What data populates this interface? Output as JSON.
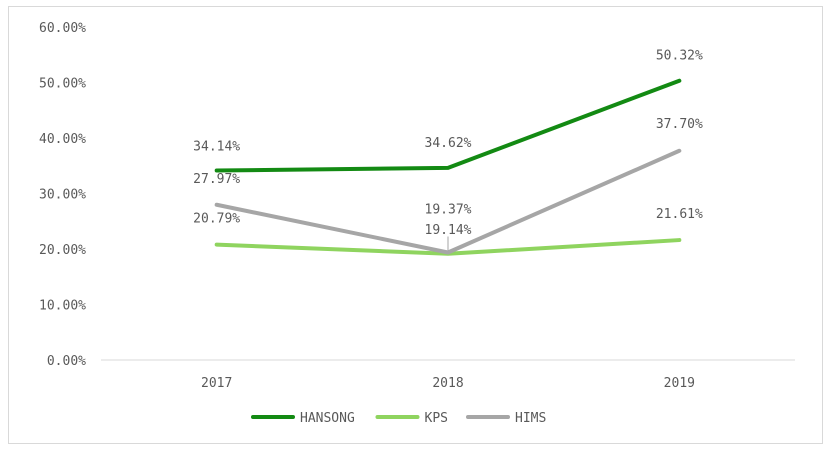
{
  "chart_data": {
    "type": "line",
    "title": "",
    "xlabel": "",
    "ylabel": "",
    "categories": [
      "2017",
      "2018",
      "2019"
    ],
    "ylim": [
      0,
      60
    ],
    "yticks": [
      "0.00%",
      "10.00%",
      "20.00%",
      "30.00%",
      "40.00%",
      "50.00%",
      "60.00%"
    ],
    "grid": false,
    "legend": "bottom",
    "series": [
      {
        "name": "HANSONG",
        "color": "#138a13",
        "values": [
          34.14,
          34.62,
          50.32
        ],
        "labels": [
          "34.14%",
          "34.62%",
          "50.32%"
        ]
      },
      {
        "name": "KPS",
        "color": "#8fd45f",
        "values": [
          20.79,
          19.14,
          21.61
        ],
        "labels": [
          "20.79%",
          "19.14%",
          "21.61%"
        ]
      },
      {
        "name": "HIMS",
        "color": "#a6a6a6",
        "values": [
          27.97,
          19.37,
          37.7
        ],
        "labels": [
          "27.97%",
          "19.37%",
          "37.70%"
        ]
      }
    ]
  }
}
